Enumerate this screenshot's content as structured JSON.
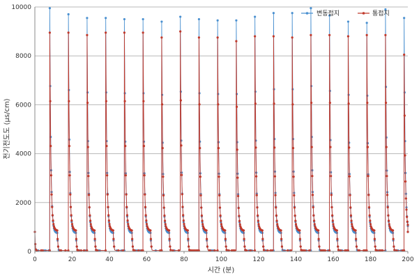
{
  "chart_data": {
    "type": "line",
    "xlabel": "시간 (분)",
    "ylabel": "전기전도도 (μs/cm)",
    "xlim": [
      0,
      200
    ],
    "ylim": [
      0,
      10000
    ],
    "x_ticks": [
      "0",
      "20",
      "40",
      "60",
      "80",
      "100",
      "120",
      "140",
      "160",
      "180",
      "200"
    ],
    "y_ticks": [
      "0",
      "2000",
      "4000",
      "6000",
      "8000",
      "10000"
    ],
    "grid": "horizontal",
    "legend_position": "top-right",
    "cycle_period_min": 10,
    "series": [
      {
        "name": "변동접지",
        "color": "#4a90d0",
        "peak_times": [
          8,
          18,
          28,
          38,
          48,
          58,
          68,
          78,
          88,
          98,
          108,
          118,
          128,
          138,
          148,
          158,
          168,
          178,
          188,
          198
        ],
        "peak_values": [
          9950,
          9700,
          9550,
          9550,
          9500,
          9500,
          9400,
          9600,
          9500,
          9450,
          9450,
          9600,
          9750,
          9750,
          9950,
          9650,
          9400,
          9350,
          9900,
          9550
        ]
      },
      {
        "name": "통접지",
        "color": "#c0392b",
        "peak_times": [
          8,
          18,
          28,
          38,
          48,
          58,
          68,
          78,
          88,
          98,
          108,
          118,
          128,
          138,
          148,
          158,
          168,
          178,
          188,
          198
        ],
        "peak_values": [
          8950,
          8950,
          8850,
          8950,
          8950,
          8950,
          8750,
          9000,
          8750,
          8750,
          8600,
          8800,
          8800,
          8750,
          8850,
          8850,
          8800,
          8850,
          8850,
          8050
        ]
      }
    ]
  }
}
